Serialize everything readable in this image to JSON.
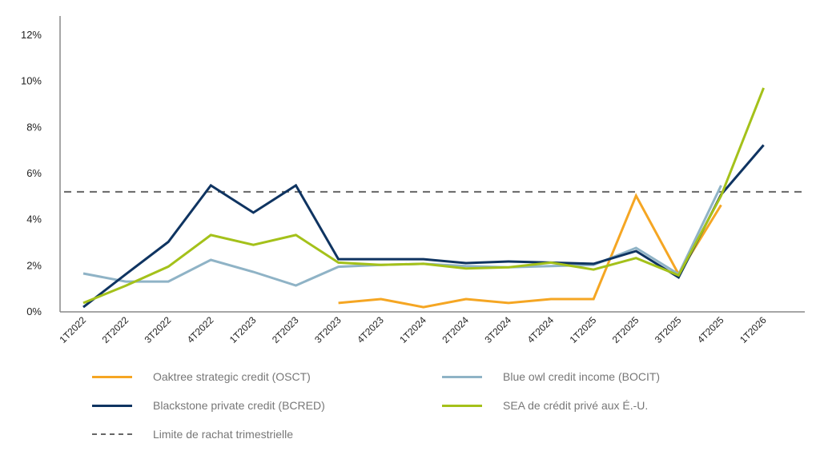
{
  "chart_data": {
    "type": "line",
    "title": "",
    "xlabel": "",
    "ylabel": "",
    "categories": [
      "1T2022",
      "2T2022",
      "3T2022",
      "4T2022",
      "1T2023",
      "2T2023",
      "3T2023",
      "4T2023",
      "1T2024",
      "2T2024",
      "3T2024",
      "4T2024",
      "1T2025",
      "2T2025",
      "3T2025",
      "4T2025",
      "1T2026"
    ],
    "y_ticks": [
      "0%",
      "2%",
      "4%",
      "6%",
      "8%",
      "10%",
      "12%"
    ],
    "ylim": [
      0,
      12
    ],
    "grid": false,
    "legend_position": "bottom",
    "series": [
      {
        "name": "Oaktree strategic credit (OSCT)",
        "color": "#f5a623",
        "values": [
          null,
          null,
          null,
          null,
          null,
          null,
          0.35,
          0.52,
          0.17,
          0.52,
          0.35,
          0.52,
          0.52,
          5.0,
          1.6,
          4.6,
          null
        ]
      },
      {
        "name": "Blue owl credit income (BOCIT)",
        "color": "#8fb3c6",
        "values": [
          1.63,
          1.28,
          1.28,
          2.22,
          1.7,
          1.11,
          1.92,
          2.0,
          2.05,
          1.95,
          1.9,
          1.95,
          2.0,
          2.74,
          1.6,
          5.45,
          null
        ]
      },
      {
        "name": "Blackstone private credit (BCRED)",
        "color": "#0f3461",
        "values": [
          0.17,
          1.6,
          3.0,
          5.45,
          4.27,
          5.45,
          2.25,
          2.25,
          2.25,
          2.08,
          2.15,
          2.1,
          2.05,
          2.6,
          1.46,
          5.05,
          7.2
        ]
      },
      {
        "name": "SEA de crédit privé aux É.-U.",
        "color": "#a4c11a",
        "values": [
          0.35,
          1.1,
          1.93,
          3.3,
          2.87,
          3.3,
          2.1,
          2.0,
          2.05,
          1.85,
          1.9,
          2.1,
          1.8,
          2.3,
          1.55,
          5.0,
          9.68
        ]
      }
    ],
    "reference_line": {
      "name": "Limite de rachat trimestrielle",
      "value": 5.17,
      "color": "#666666",
      "style": "dashed"
    }
  }
}
